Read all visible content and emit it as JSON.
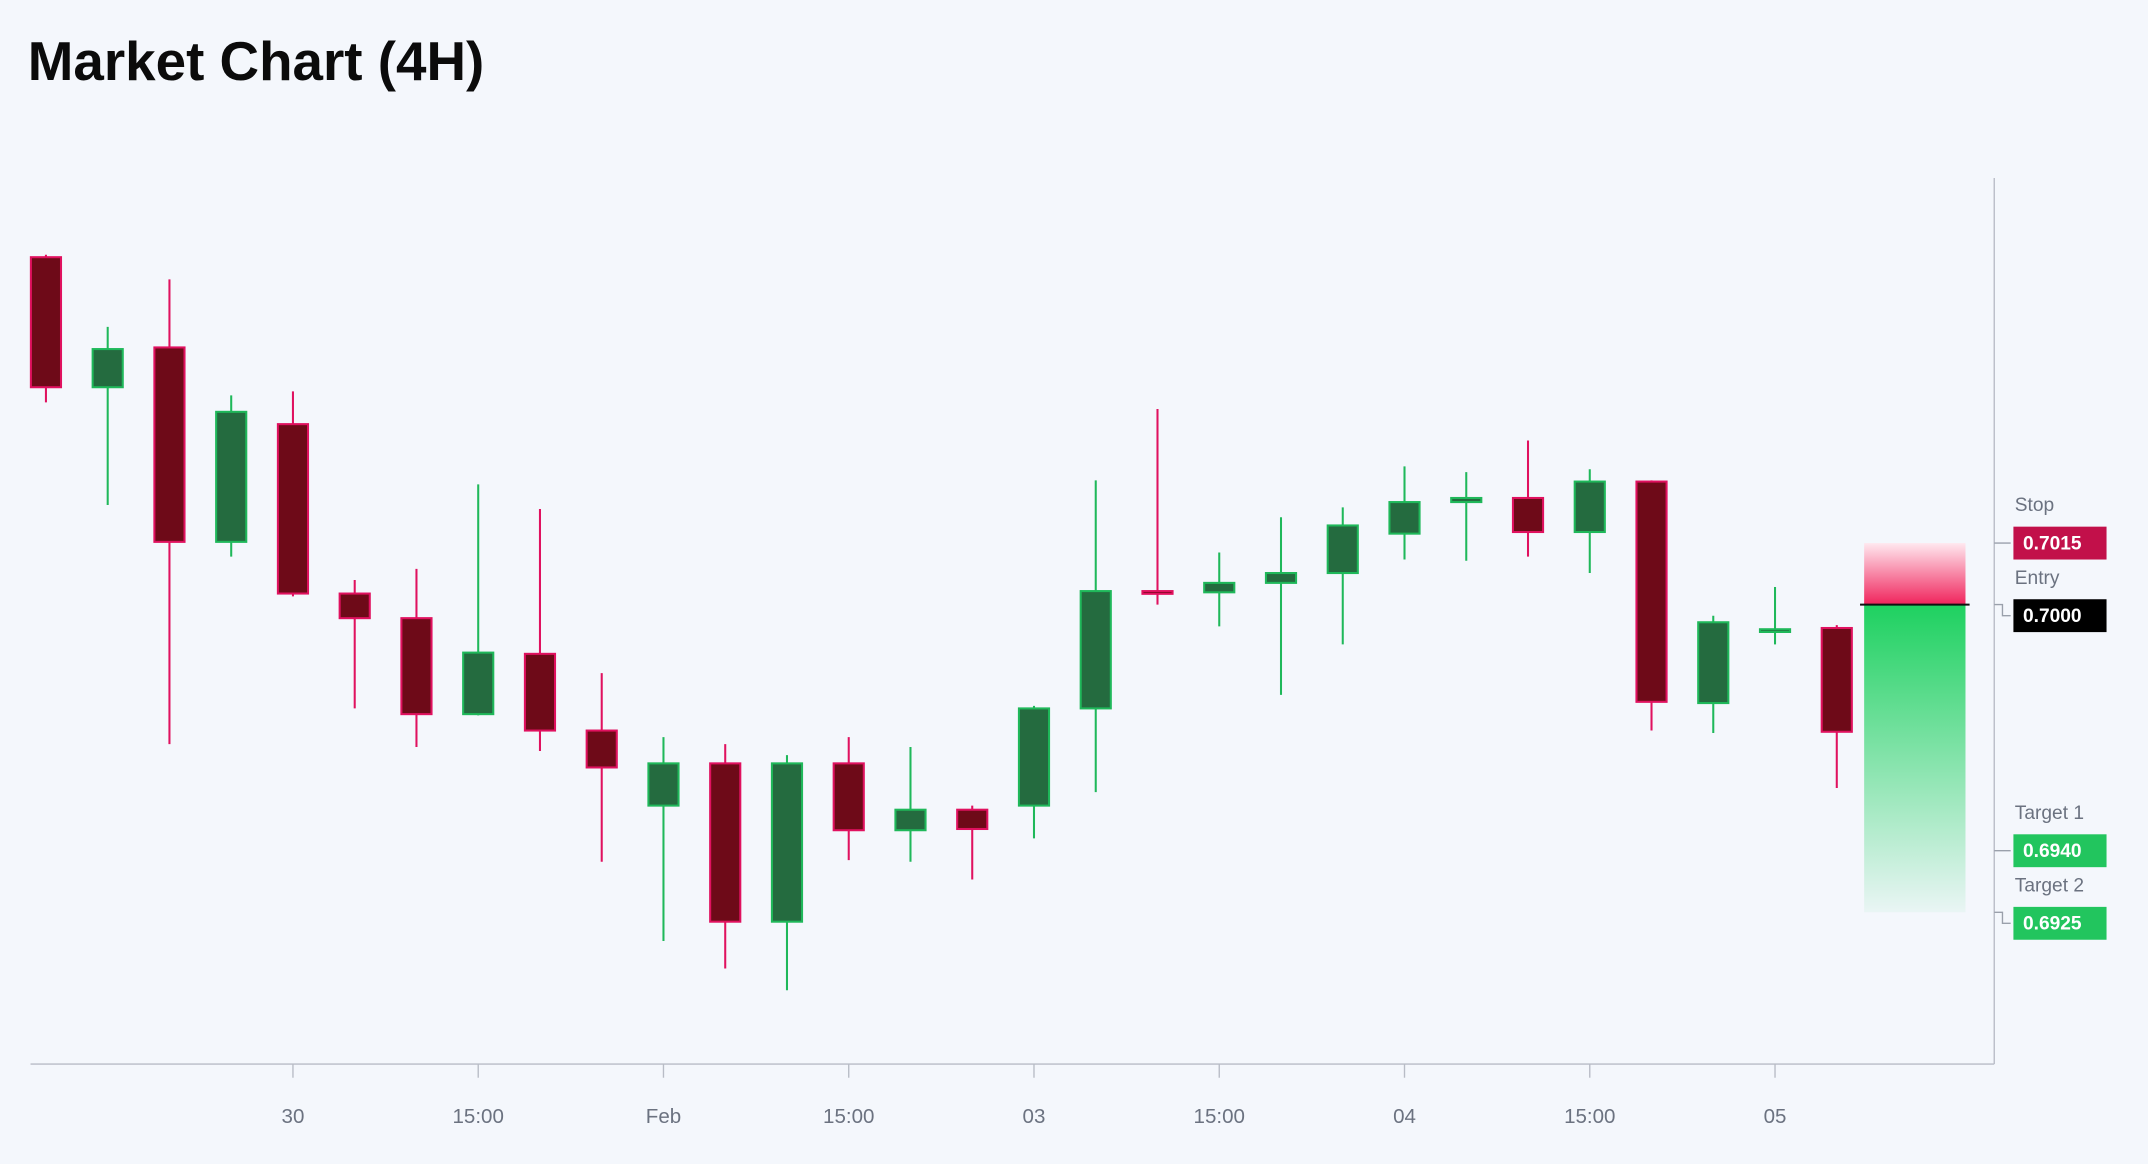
{
  "chart_data": {
    "type": "candlestick",
    "title": "Market Chart (4H)",
    "x": [
      0,
      1,
      2,
      3,
      4,
      5,
      6,
      7,
      8,
      9,
      10,
      11,
      12,
      13,
      14,
      15,
      16,
      17,
      18,
      19,
      20,
      21,
      22,
      23,
      24,
      25,
      26,
      27,
      28,
      29
    ],
    "open": [
      0.70847,
      0.7053,
      0.70627,
      0.70153,
      0.7044,
      0.70027,
      0.69967,
      0.69733,
      0.6988,
      0.69693,
      0.6951,
      0.69613,
      0.69227,
      0.69613,
      0.6945,
      0.695,
      0.6951,
      0.69747,
      0.70033,
      0.7003,
      0.70053,
      0.70077,
      0.70173,
      0.7025,
      0.7026,
      0.70177,
      0.703,
      0.6976,
      0.69937,
      0.69943
    ],
    "high": [
      0.70853,
      0.70677,
      0.70793,
      0.7051,
      0.7052,
      0.7006,
      0.70087,
      0.70293,
      0.70233,
      0.69833,
      0.69677,
      0.6966,
      0.69633,
      0.69677,
      0.69653,
      0.6951,
      0.69753,
      0.70303,
      0.70477,
      0.70127,
      0.70213,
      0.70237,
      0.70337,
      0.70323,
      0.704,
      0.7033,
      0.70303,
      0.69973,
      0.70043,
      0.6995
    ],
    "low": [
      0.70493,
      0.70243,
      0.6966,
      0.70117,
      0.7002,
      0.69747,
      0.69653,
      0.6973,
      0.69643,
      0.69373,
      0.6918,
      0.69113,
      0.6906,
      0.69377,
      0.69373,
      0.6933,
      0.6943,
      0.69543,
      0.7,
      0.69947,
      0.6978,
      0.69903,
      0.7011,
      0.70107,
      0.70117,
      0.70077,
      0.69693,
      0.69687,
      0.69903,
      0.69553
    ],
    "close": [
      0.7053,
      0.70623,
      0.70153,
      0.7047,
      0.70027,
      0.69967,
      0.69733,
      0.69883,
      0.69693,
      0.69603,
      0.69613,
      0.69227,
      0.69613,
      0.6945,
      0.695,
      0.69453,
      0.69747,
      0.70033,
      0.70027,
      0.70053,
      0.70077,
      0.70193,
      0.7025,
      0.7026,
      0.70177,
      0.703,
      0.69763,
      0.69957,
      0.6994,
      0.6969
    ],
    "up_color": "#1fb85a",
    "up_fill": "#246b3f",
    "down_color": "#e0115f",
    "down_fill": "#6e0a18",
    "xlim": [
      -0.25,
      31.55
    ],
    "ylim": [
      0.6888,
      0.7104
    ],
    "xticks": [
      {
        "value": 4,
        "label": "30"
      },
      {
        "value": 7,
        "label": "15:00"
      },
      {
        "value": 10,
        "label": "Feb"
      },
      {
        "value": 13,
        "label": "15:00"
      },
      {
        "value": 16,
        "label": "03"
      },
      {
        "value": 19,
        "label": "15:00"
      },
      {
        "value": 22,
        "label": "04"
      },
      {
        "value": 25,
        "label": "15:00"
      },
      {
        "value": 28,
        "label": "05"
      }
    ],
    "levels": [
      {
        "name": "Stop",
        "value": 0.7015,
        "label": "0.7015",
        "color": "#c2104a"
      },
      {
        "name": "Entry",
        "value": 0.7,
        "label": "0.7000",
        "color": "#000000"
      },
      {
        "name": "Target 1",
        "value": 0.694,
        "label": "0.6940",
        "color": "#22c55e"
      },
      {
        "name": "Target 2",
        "value": 0.6925,
        "label": "0.6925",
        "color": "#22c55e"
      }
    ]
  }
}
